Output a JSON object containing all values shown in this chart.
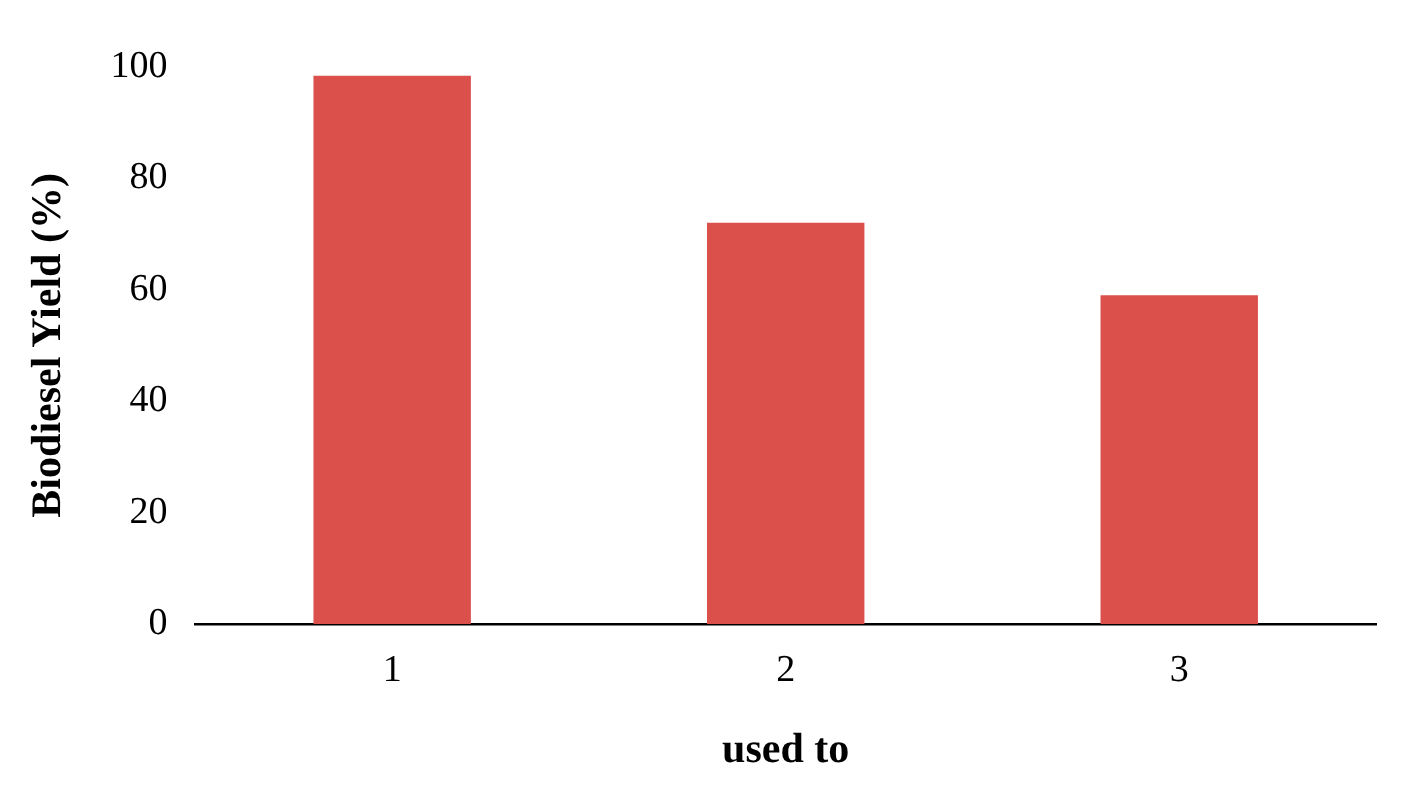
{
  "chart_data": {
    "type": "bar",
    "xlabel": "used to",
    "ylabel": "Biodiesel Yield (%)",
    "categories": [
      "1",
      "2",
      "3"
    ],
    "values": [
      98.4,
      72,
      59
    ],
    "color": "#db504b",
    "ylim": [
      0,
      100
    ],
    "yticks": [
      0,
      20,
      40,
      60,
      80,
      100
    ],
    "grid": false,
    "legend": false
  }
}
